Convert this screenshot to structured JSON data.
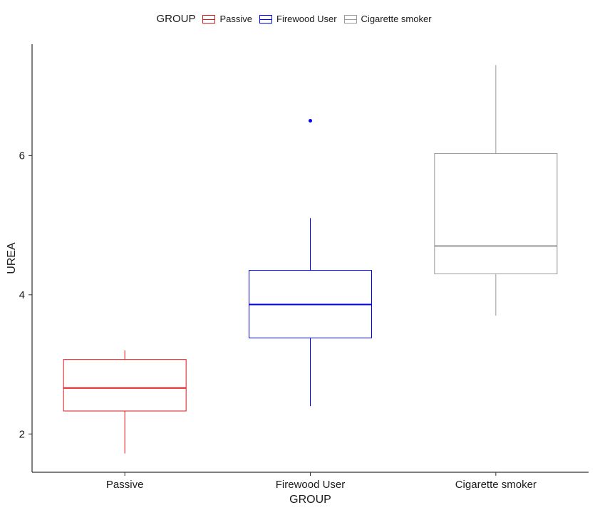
{
  "chart_data": {
    "type": "boxplot",
    "legend": {
      "title": "GROUP",
      "position": "top"
    },
    "xlabel": "GROUP",
    "ylabel": "UREA",
    "categories": [
      "Passive",
      "Firewood User",
      "Cigarette smoker"
    ],
    "ylim": [
      1.45,
      7.6
    ],
    "yticks": [
      2,
      4,
      6
    ],
    "grid": false,
    "series": [
      {
        "name": "Passive",
        "color": "#d7191c",
        "whisker_low": 1.72,
        "q1": 2.33,
        "median": 2.66,
        "q3": 3.07,
        "whisker_high": 3.2,
        "outliers": []
      },
      {
        "name": "Firewood User",
        "color": "#0000ff",
        "whisker_low": 2.4,
        "q1": 3.38,
        "median": 3.86,
        "q3": 4.35,
        "whisker_high": 5.1,
        "outliers": [
          6.5
        ]
      },
      {
        "name": "Cigarette smoker",
        "color": "#999999",
        "whisker_low": 3.7,
        "q1": 4.3,
        "median": 4.7,
        "q3": 6.03,
        "whisker_high": 7.3,
        "outliers": []
      }
    ]
  }
}
